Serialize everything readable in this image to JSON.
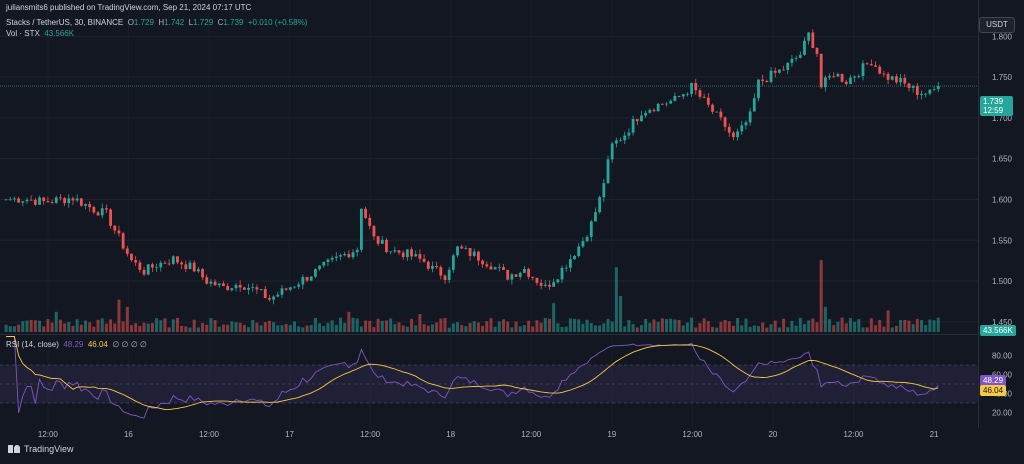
{
  "header": {
    "publisher": "juliansmits6 published on TradingView.com, Sep 21, 2024 07:17 UTC",
    "symbol": "Stacks / TetherUS, 30, BINANCE",
    "o_label": "O",
    "o_value": "1.729",
    "h_label": "H",
    "h_value": "1.742",
    "l_label": "L",
    "l_value": "1.729",
    "c_label": "C",
    "c_value": "1.739",
    "change": "+0.010 (+0.58%)",
    "vol_label": "Vol · STX",
    "vol_value": "43.566K"
  },
  "currency_button": "USDT",
  "rsi_header": {
    "label": "RSI (14, close)",
    "rsi_value": "48.29",
    "ma_value": "46.04",
    "extras": "∅ ∅ ∅ ∅"
  },
  "price_tag": {
    "price": "1.739",
    "countdown": "12:59"
  },
  "volume_tag": "43.566K",
  "rsi_tags": {
    "rsi": "48.29",
    "ma": "46.04"
  },
  "footer": {
    "brand": "TradingView"
  },
  "colors": {
    "background": "#131722",
    "up": "#26a69a",
    "down": "#ef5350",
    "rsi_line": "#7e57c2",
    "rsi_ma": "#f7c948",
    "rsi_band": "#7e57c2"
  },
  "chart_data": [
    {
      "type": "candlestick",
      "title": "Stacks / TetherUS, 30, BINANCE",
      "interval": "30m",
      "x_tick_labels": [
        "12:00",
        "16",
        "12:00",
        "17",
        "12:00",
        "18",
        "12:00",
        "19",
        "12:00",
        "20",
        "12:00",
        "21"
      ],
      "y_tick_labels": [
        "1.800",
        "1.750",
        "1.700",
        "1.650",
        "1.600",
        "1.550",
        "1.500",
        "1.450"
      ],
      "ylim": [
        1.44,
        1.82
      ],
      "last_price": 1.739,
      "close_path": [
        [
          0,
          1.6
        ],
        [
          4,
          1.601
        ],
        [
          9,
          1.597
        ],
        [
          16,
          1.602
        ],
        [
          21,
          1.588
        ],
        [
          24,
          1.582
        ],
        [
          27,
          1.553
        ],
        [
          30,
          1.525
        ],
        [
          33,
          1.512
        ],
        [
          36,
          1.52
        ],
        [
          40,
          1.527
        ],
        [
          45,
          1.515
        ],
        [
          48,
          1.5
        ],
        [
          52,
          1.492
        ],
        [
          56,
          1.497
        ],
        [
          60,
          1.488
        ],
        [
          63,
          1.478
        ],
        [
          67,
          1.49
        ],
        [
          72,
          1.505
        ],
        [
          77,
          1.521
        ],
        [
          80,
          1.53
        ],
        [
          84,
          1.54
        ],
        [
          85,
          1.592
        ],
        [
          88,
          1.552
        ],
        [
          92,
          1.538
        ],
        [
          96,
          1.533
        ],
        [
          100,
          1.524
        ],
        [
          102,
          1.515
        ],
        [
          105,
          1.507
        ],
        [
          108,
          1.54
        ],
        [
          112,
          1.532
        ],
        [
          116,
          1.52
        ],
        [
          120,
          1.506
        ],
        [
          124,
          1.515
        ],
        [
          127,
          1.501
        ],
        [
          129,
          1.492
        ],
        [
          132,
          1.508
        ],
        [
          135,
          1.528
        ],
        [
          138,
          1.55
        ],
        [
          140,
          1.57
        ],
        [
          142,
          1.6
        ],
        [
          145,
          1.666
        ],
        [
          148,
          1.68
        ],
        [
          152,
          1.708
        ],
        [
          156,
          1.716
        ],
        [
          160,
          1.722
        ],
        [
          164,
          1.738
        ],
        [
          168,
          1.714
        ],
        [
          172,
          1.69
        ],
        [
          174,
          1.674
        ],
        [
          176,
          1.686
        ],
        [
          178,
          1.702
        ],
        [
          180,
          1.743
        ],
        [
          183,
          1.752
        ],
        [
          186,
          1.76
        ],
        [
          190,
          1.778
        ],
        [
          192,
          1.802
        ],
        [
          194,
          1.78
        ],
        [
          195,
          1.738
        ],
        [
          198,
          1.755
        ],
        [
          201,
          1.745
        ],
        [
          204,
          1.757
        ],
        [
          207,
          1.77
        ],
        [
          210,
          1.752
        ],
        [
          214,
          1.744
        ],
        [
          218,
          1.732
        ],
        [
          221,
          1.73
        ],
        [
          223,
          1.739
        ]
      ],
      "volume": {
        "label": "Vol · STX",
        "last": "43.566K",
        "spikes": [
          [
            12,
            0.28
          ],
          [
            27,
            0.45
          ],
          [
            29,
            0.35
          ],
          [
            82,
            0.28
          ],
          [
            99,
            0.25
          ],
          [
            131,
            0.4
          ],
          [
            146,
            0.9
          ],
          [
            147,
            0.5
          ],
          [
            195,
            1.0
          ],
          [
            196,
            0.35
          ],
          [
            211,
            0.3
          ],
          [
            223,
            0.2
          ]
        ]
      }
    },
    {
      "type": "line",
      "title": "RSI (14, close)",
      "ylim": [
        10,
        90
      ],
      "y_tick_labels": [
        "80.00",
        "60.00",
        "40.00",
        "20.00"
      ],
      "bands": {
        "upper": 70,
        "lower": 30
      },
      "series": [
        {
          "name": "RSI",
          "last": 48.29
        },
        {
          "name": "MA",
          "last": 46.04
        }
      ]
    }
  ]
}
